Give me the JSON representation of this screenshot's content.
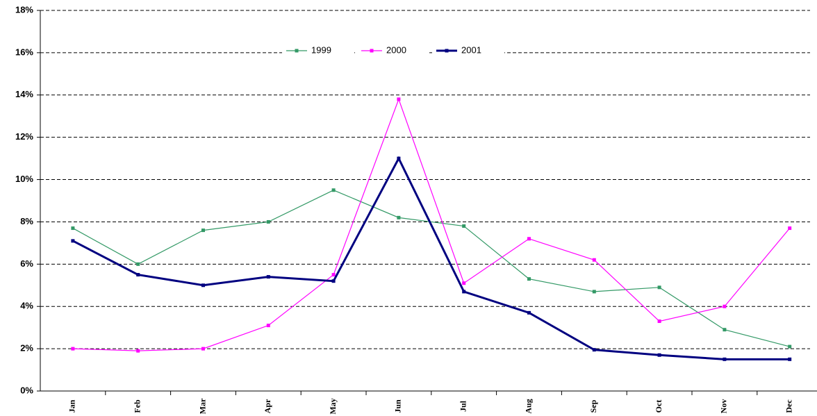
{
  "chart_data": {
    "type": "line",
    "categories": [
      "Jan",
      "Feb",
      "Mar",
      "Apr",
      "May",
      "Jun",
      "Jul",
      "Aug",
      "Sep",
      "Oct",
      "Nov",
      "Dec"
    ],
    "series": [
      {
        "name": "1999",
        "color": "#339966",
        "values": [
          7.7,
          6.0,
          7.6,
          8.0,
          9.5,
          8.2,
          7.8,
          5.3,
          4.7,
          4.9,
          2.9,
          2.1
        ]
      },
      {
        "name": "2000",
        "color": "#ff00ff",
        "values": [
          2.0,
          1.9,
          2.0,
          3.1,
          5.5,
          13.8,
          5.1,
          7.2,
          6.2,
          3.3,
          4.0,
          7.7
        ]
      },
      {
        "name": "2001",
        "color": "#000080",
        "values": [
          7.1,
          5.5,
          5.0,
          5.4,
          5.2,
          11.0,
          4.7,
          3.7,
          1.95,
          1.7,
          1.5,
          1.5
        ]
      }
    ],
    "ylim": [
      0,
      18
    ],
    "yticks": [
      {
        "value": 0,
        "label": "0%"
      },
      {
        "value": 2,
        "label": "2%"
      },
      {
        "value": 4,
        "label": "4%"
      },
      {
        "value": 6,
        "label": "6%"
      },
      {
        "value": 8,
        "label": "8%"
      },
      {
        "value": 10,
        "label": "10%"
      },
      {
        "value": 12,
        "label": "12%"
      },
      {
        "value": 14,
        "label": "14%"
      },
      {
        "value": 16,
        "label": "16%"
      },
      {
        "value": 18,
        "label": "18%"
      }
    ],
    "grid": true
  }
}
